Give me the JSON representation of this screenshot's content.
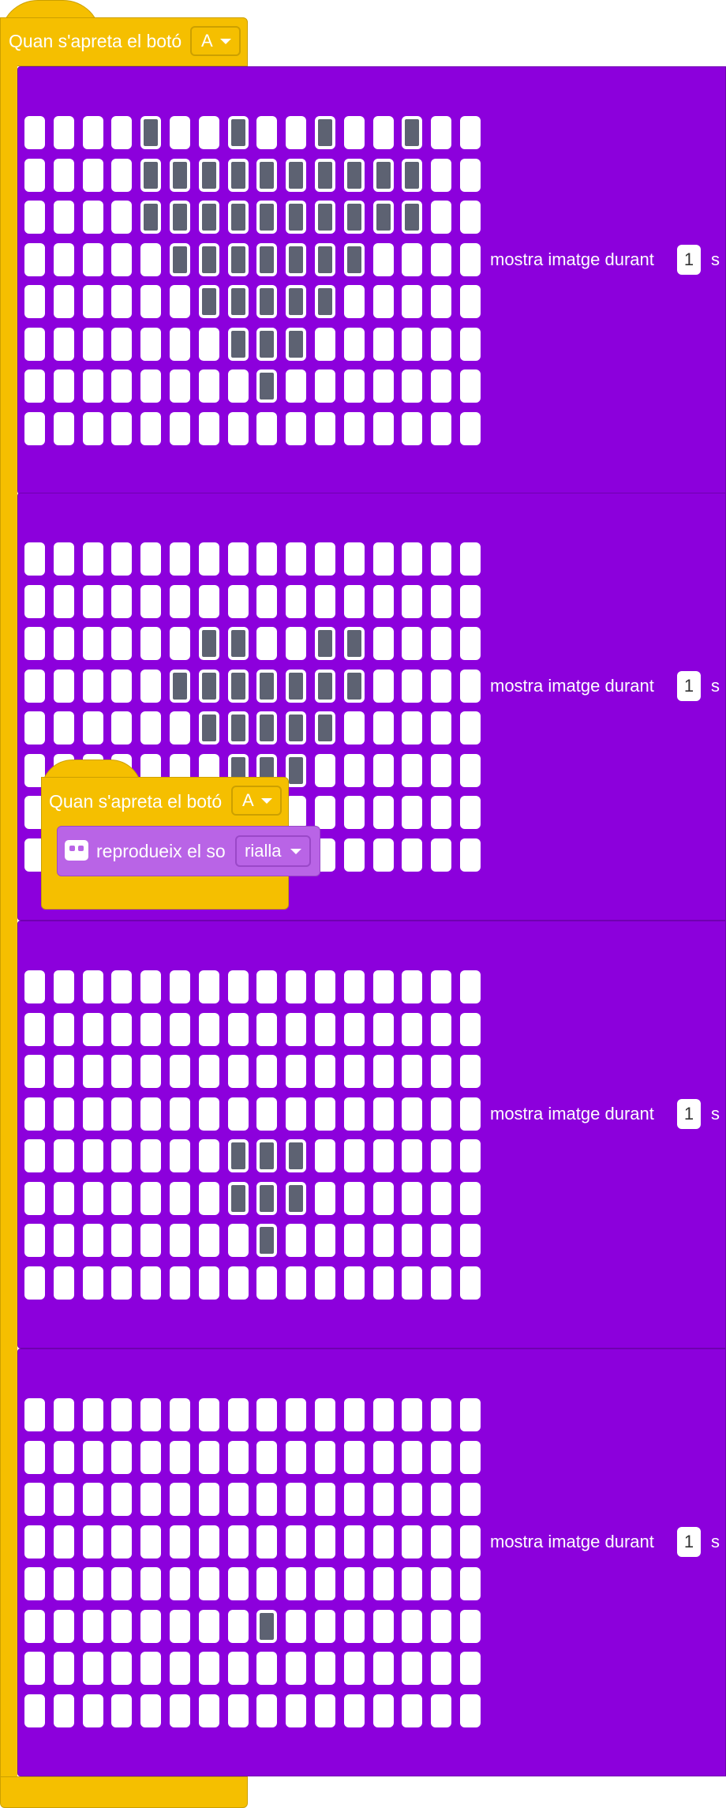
{
  "event_hat": {
    "label": "Quan s'apreta el botó",
    "button_value": "A"
  },
  "floating_hat": {
    "label": "Quan s'apreta el botó",
    "button_value": "A"
  },
  "sound_block": {
    "label": "reprodueix el so",
    "sound_value": "rialla",
    "icon": "robot-icon"
  },
  "colors": {
    "hat": "#F5BF00",
    "display_block": "#8C00DC",
    "sound_block": "#B964E6",
    "led_on": "#5D6272",
    "led_off": "#FFFFFF"
  },
  "grid": {
    "columns": 16,
    "rows": 8
  },
  "show_blocks": [
    {
      "label": "mostra imatge durant",
      "duration": "1",
      "unit": "s",
      "leds": [
        "0000100100100100",
        "0000111111111100",
        "0000111111111100",
        "0000011111110000",
        "0000001111100000",
        "0000000111000000",
        "0000000010000000",
        "0000000000000000"
      ]
    },
    {
      "label": "mostra imatge durant",
      "duration": "1",
      "unit": "s",
      "leds": [
        "0000000000000000",
        "0000000000000000",
        "0000001100110000",
        "0000011111110000",
        "0000001111100000",
        "0000000111000000",
        "0000000010000000",
        "0000000000000000"
      ]
    },
    {
      "label": "mostra imatge durant",
      "duration": "1",
      "unit": "s",
      "leds": [
        "0000000000000000",
        "0000000000000000",
        "0000000000000000",
        "0000000000000000",
        "0000000111000000",
        "0000000111000000",
        "0000000010000000",
        "0000000000000000"
      ]
    },
    {
      "label": "mostra imatge durant",
      "duration": "1",
      "unit": "s",
      "leds": [
        "0000000000000000",
        "0000000000000000",
        "0000000000000000",
        "0000000000000000",
        "0000000000000000",
        "0000000010000000",
        "0000000000000000",
        "0000000000000000"
      ]
    }
  ]
}
